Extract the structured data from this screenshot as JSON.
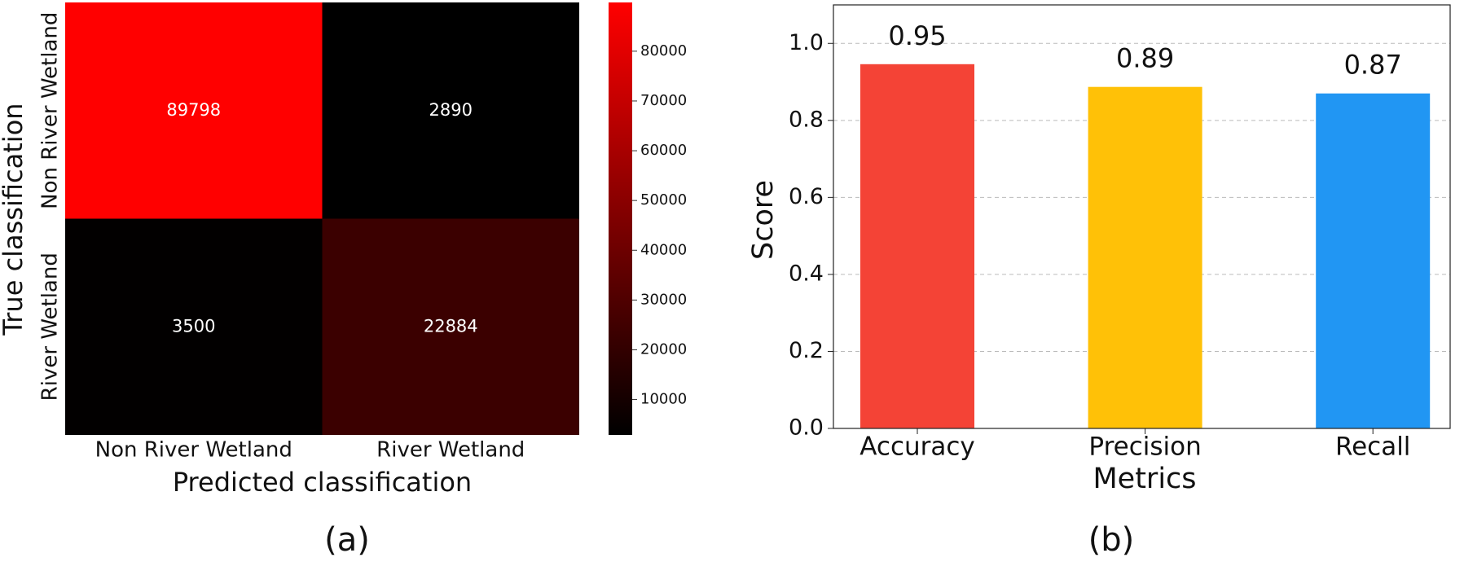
{
  "chart_data": [
    {
      "type": "heatmap",
      "x_label": "Predicted classification",
      "y_label": "True classification",
      "caption": "(a)",
      "x_categories": [
        "Non River Wetland",
        "River Wetland"
      ],
      "y_categories": [
        "Non River Wetland",
        "River Wetland"
      ],
      "values": [
        [
          89798,
          2890
        ],
        [
          3500,
          22884
        ]
      ],
      "colormap": [
        "#000000",
        "#ff0000"
      ],
      "clim": [
        2890,
        89798
      ],
      "cticks": [
        10000,
        20000,
        30000,
        40000,
        50000,
        60000,
        70000,
        80000
      ]
    },
    {
      "type": "bar",
      "x_label": "Metrics",
      "y_label": "Score",
      "caption": "(b)",
      "categories": [
        "Accuracy",
        "Precision",
        "Recall"
      ],
      "values": [
        0.946,
        0.887,
        0.87
      ],
      "value_labels": [
        "0.95",
        "0.89",
        "0.87"
      ],
      "colors": [
        "#f44336",
        "#ffc107",
        "#2196f3"
      ],
      "ylim": [
        0,
        1.1
      ],
      "yticks": [
        {
          "value": 0,
          "label": "0.0"
        },
        {
          "value": 0.2,
          "label": "0.2"
        },
        {
          "value": 0.4,
          "label": "0.4"
        },
        {
          "value": 0.6,
          "label": "0.6"
        },
        {
          "value": 0.8,
          "label": "0.8"
        },
        {
          "value": 1.0,
          "label": "1.0"
        }
      ],
      "grid": true
    }
  ]
}
